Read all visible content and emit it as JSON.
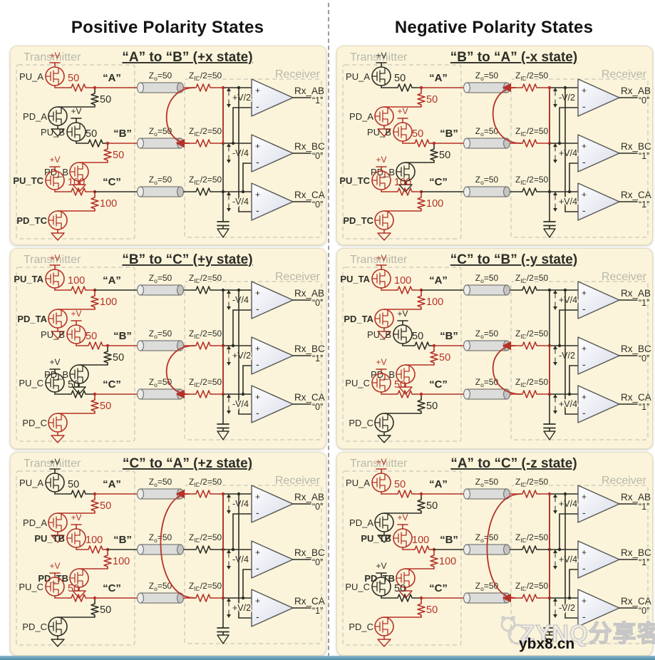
{
  "headers": {
    "left": "Positive Polarity States",
    "right": "Negative Polarity States"
  },
  "shared": {
    "transmitter": "Transmitter",
    "receiver": "Receiver",
    "vplus": "+V",
    "tline": {
      "base": "Z",
      "sub": "o",
      "rest": "=50"
    },
    "term": {
      "base": "Z",
      "sub": "ID",
      "rest": "/2=50"
    }
  },
  "colors": {
    "active": "#b63127",
    "ink": "#2d2d27",
    "muted_label": "#b7b7aa",
    "panel_bg": "#fbf4da"
  },
  "panels": [
    {
      "id": "plus-x",
      "title": "“A” to “B” (+x state)",
      "drivers": [
        {
          "pu": "PU_A",
          "pd": "PD_A",
          "bold": false,
          "pu_res": "50",
          "pd_res": "50",
          "pu_on": true,
          "pd_on": false,
          "node": "“A”"
        },
        {
          "pu": "PU_B",
          "pd": "PD_B",
          "bold": false,
          "pu_res": "50",
          "pd_res": "50",
          "pu_on": false,
          "pd_on": true,
          "node": "“B”"
        },
        {
          "pu": "PU_TC",
          "pd": "PD_TC",
          "bold": true,
          "pu_res": "100",
          "pd_res": "100",
          "pu_on": true,
          "pd_on": true,
          "node": "“C”"
        }
      ],
      "comparators": [
        {
          "label": "Rx_AB",
          "vdiff": "+V/2",
          "out": "“1”"
        },
        {
          "label": "Rx_BC",
          "vdiff": "-V/4",
          "out": "“0”"
        },
        {
          "label": "Rx_CA",
          "vdiff": "-V/4",
          "out": "“0”"
        }
      ],
      "current": {
        "from": 0,
        "to": 1
      }
    },
    {
      "id": "minus-x",
      "title": "“B” to “A” (-x state)",
      "drivers": [
        {
          "pu": "PU_A",
          "pd": "PD_A",
          "bold": false,
          "pu_res": "50",
          "pd_res": "50",
          "pu_on": false,
          "pd_on": true,
          "node": "“A”"
        },
        {
          "pu": "PU_B",
          "pd": "PD_B",
          "bold": false,
          "pu_res": "50",
          "pd_res": "50",
          "pu_on": true,
          "pd_on": false,
          "node": "“B”"
        },
        {
          "pu": "PU_TC",
          "pd": "PD_TC",
          "bold": true,
          "pu_res": "100",
          "pd_res": "100",
          "pu_on": true,
          "pd_on": true,
          "node": "“C”"
        }
      ],
      "comparators": [
        {
          "label": "Rx_AB",
          "vdiff": "-V/2",
          "out": "“0”"
        },
        {
          "label": "Rx_BC",
          "vdiff": "+V/4",
          "out": "“1”"
        },
        {
          "label": "Rx_CA",
          "vdiff": "+V/4",
          "out": "“1”"
        }
      ],
      "current": {
        "from": 1,
        "to": 0
      }
    },
    {
      "id": "plus-y",
      "title": "“B” to “C” (+y state)",
      "drivers": [
        {
          "pu": "PU_TA",
          "pd": "PD_TA",
          "bold": true,
          "pu_res": "100",
          "pd_res": "100",
          "pu_on": true,
          "pd_on": true,
          "node": "“A”"
        },
        {
          "pu": "PU_B",
          "pd": "PD_B",
          "bold": false,
          "pu_res": "50",
          "pd_res": "50",
          "pu_on": true,
          "pd_on": false,
          "node": "“B”"
        },
        {
          "pu": "PU_C",
          "pd": "PD_C",
          "bold": false,
          "pu_res": "50",
          "pd_res": "50",
          "pu_on": false,
          "pd_on": true,
          "node": "“C”"
        }
      ],
      "comparators": [
        {
          "label": "Rx_AB",
          "vdiff": "-V/4",
          "out": "“0”"
        },
        {
          "label": "Rx_BC",
          "vdiff": "+V/2",
          "out": "“1”"
        },
        {
          "label": "Rx_CA",
          "vdiff": "-V/4",
          "out": "“0”"
        }
      ],
      "current": {
        "from": 1,
        "to": 2
      }
    },
    {
      "id": "minus-y",
      "title": "“C” to “B” (-y state)",
      "drivers": [
        {
          "pu": "PU_TA",
          "pd": "PD_TA",
          "bold": true,
          "pu_res": "100",
          "pd_res": "100",
          "pu_on": true,
          "pd_on": true,
          "node": "“A”"
        },
        {
          "pu": "PU_B",
          "pd": "PD_B",
          "bold": false,
          "pu_res": "50",
          "pd_res": "50",
          "pu_on": false,
          "pd_on": true,
          "node": "“B”"
        },
        {
          "pu": "PU_C",
          "pd": "PD_C",
          "bold": false,
          "pu_res": "50",
          "pd_res": "50",
          "pu_on": true,
          "pd_on": false,
          "node": "“C”"
        }
      ],
      "comparators": [
        {
          "label": "Rx_AB",
          "vdiff": "+V/4",
          "out": "“1”"
        },
        {
          "label": "Rx_BC",
          "vdiff": "-V/2",
          "out": "“0”"
        },
        {
          "label": "Rx_CA",
          "vdiff": "+V/4",
          "out": "“1”"
        }
      ],
      "current": {
        "from": 2,
        "to": 1
      }
    },
    {
      "id": "plus-z",
      "title": "“C” to “A” (+z state)",
      "drivers": [
        {
          "pu": "PU_A",
          "pd": "PD_A",
          "bold": false,
          "pu_res": "50",
          "pd_res": "50",
          "pu_on": false,
          "pd_on": true,
          "node": "“A”"
        },
        {
          "pu": "PU_TB",
          "pd": "PD_TB",
          "bold": true,
          "pu_res": "100",
          "pd_res": "100",
          "pu_on": true,
          "pd_on": true,
          "node": "“B”"
        },
        {
          "pu": "PU_C",
          "pd": "PD_C",
          "bold": false,
          "pu_res": "50",
          "pd_res": "50",
          "pu_on": true,
          "pd_on": false,
          "node": "“C”"
        }
      ],
      "comparators": [
        {
          "label": "Rx_AB",
          "vdiff": "-V/4",
          "out": "“0”"
        },
        {
          "label": "Rx_BC",
          "vdiff": "-V/4",
          "out": "“0”"
        },
        {
          "label": "Rx_CA",
          "vdiff": "+V/2",
          "out": "“1”"
        }
      ],
      "current": {
        "from": 2,
        "to": 0
      }
    },
    {
      "id": "minus-z",
      "title": "“A” to “C” (-z state)",
      "drivers": [
        {
          "pu": "PU_A",
          "pd": "PD_A",
          "bold": false,
          "pu_res": "50",
          "pd_res": "50",
          "pu_on": true,
          "pd_on": false,
          "node": "“A”"
        },
        {
          "pu": "PU_TB",
          "pd": "PD_TB",
          "bold": true,
          "pu_res": "100",
          "pd_res": "100",
          "pu_on": true,
          "pd_on": true,
          "node": "“B”"
        },
        {
          "pu": "PU_C",
          "pd": "PD_C",
          "bold": false,
          "pu_res": "50",
          "pd_res": "50",
          "pu_on": false,
          "pd_on": true,
          "node": "“C”"
        }
      ],
      "comparators": [
        {
          "label": "Rx_AB",
          "vdiff": "+V/4",
          "out": "“1”"
        },
        {
          "label": "Rx_BC",
          "vdiff": "+V/4",
          "out": "“1”"
        },
        {
          "label": "Rx_CA",
          "vdiff": "-V/2",
          "out": "“0”"
        }
      ],
      "current": {
        "from": 0,
        "to": 2
      }
    }
  ],
  "watermark": {
    "brand": "ZYNQ分享客",
    "url": "ybx8.cn"
  }
}
